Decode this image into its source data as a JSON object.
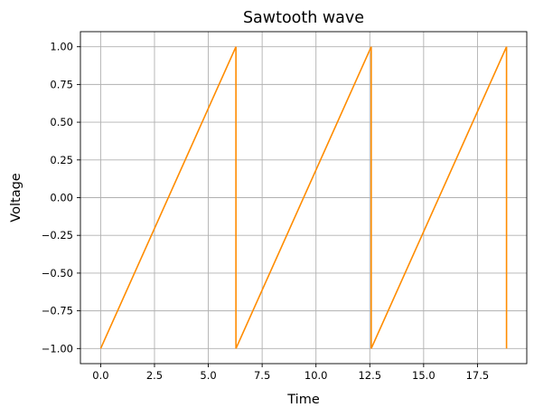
{
  "chart_data": {
    "type": "line",
    "title": "Sawtooth wave",
    "xlabel": "Time",
    "ylabel": "Voltage",
    "xlim": [
      -0.94,
      19.79
    ],
    "ylim": [
      -1.1,
      1.1
    ],
    "xticks": [
      0,
      2.5,
      5,
      7.5,
      10,
      12.5,
      15,
      17.5
    ],
    "xtick_labels": [
      "0.0",
      "2.5",
      "5.0",
      "7.5",
      "10.0",
      "12.5",
      "15.0",
      "17.5"
    ],
    "yticks": [
      -1,
      -0.75,
      -0.5,
      -0.25,
      0,
      0.25,
      0.5,
      0.75,
      1
    ],
    "ytick_labels": [
      "−1.00",
      "−0.75",
      "−0.50",
      "−0.25",
      "0.00",
      "0.25",
      "0.50",
      "0.75",
      "1.00"
    ],
    "grid": true,
    "series": [
      {
        "color": "#ff8c00",
        "x": [
          0,
          6.283,
          6.283,
          12.566,
          12.566,
          18.85,
          18.85
        ],
        "y": [
          -1,
          1,
          -1,
          1,
          -1,
          1,
          -1
        ]
      }
    ]
  }
}
